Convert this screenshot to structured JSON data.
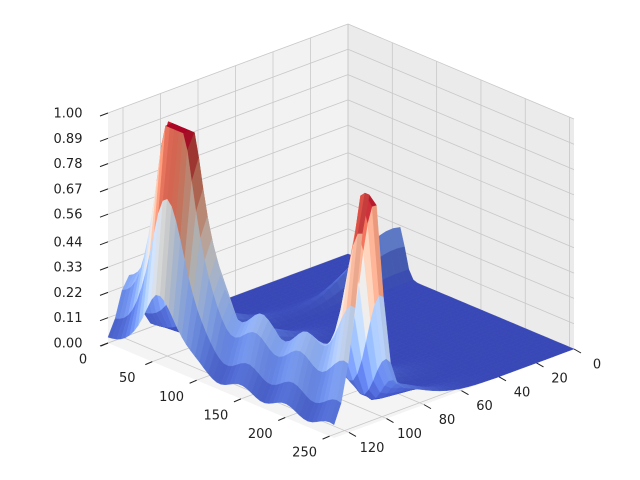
{
  "chart_data": {
    "type": "surface",
    "title": "",
    "xlabel": "",
    "ylabel": "",
    "zlabel": "",
    "colormap": "coolwarm",
    "grid": true,
    "x_ticks": [
      0,
      50,
      100,
      150,
      200,
      250
    ],
    "y_ticks": [
      0,
      20,
      40,
      60,
      80,
      100,
      120
    ],
    "z_ticks": [
      "0.00",
      "0.11",
      "0.22",
      "0.33",
      "0.44",
      "0.56",
      "0.67",
      "0.78",
      "0.89",
      "1.00"
    ],
    "xlim": [
      0,
      255
    ],
    "ylim": [
      0,
      128
    ],
    "zlim": [
      0,
      1
    ],
    "peaks": [
      {
        "x": 60,
        "y": 118,
        "z": 1.0
      },
      {
        "x": 255,
        "y": 108,
        "z": 0.93
      },
      {
        "x": 60,
        "y": 0,
        "z": 0.24
      }
    ]
  }
}
